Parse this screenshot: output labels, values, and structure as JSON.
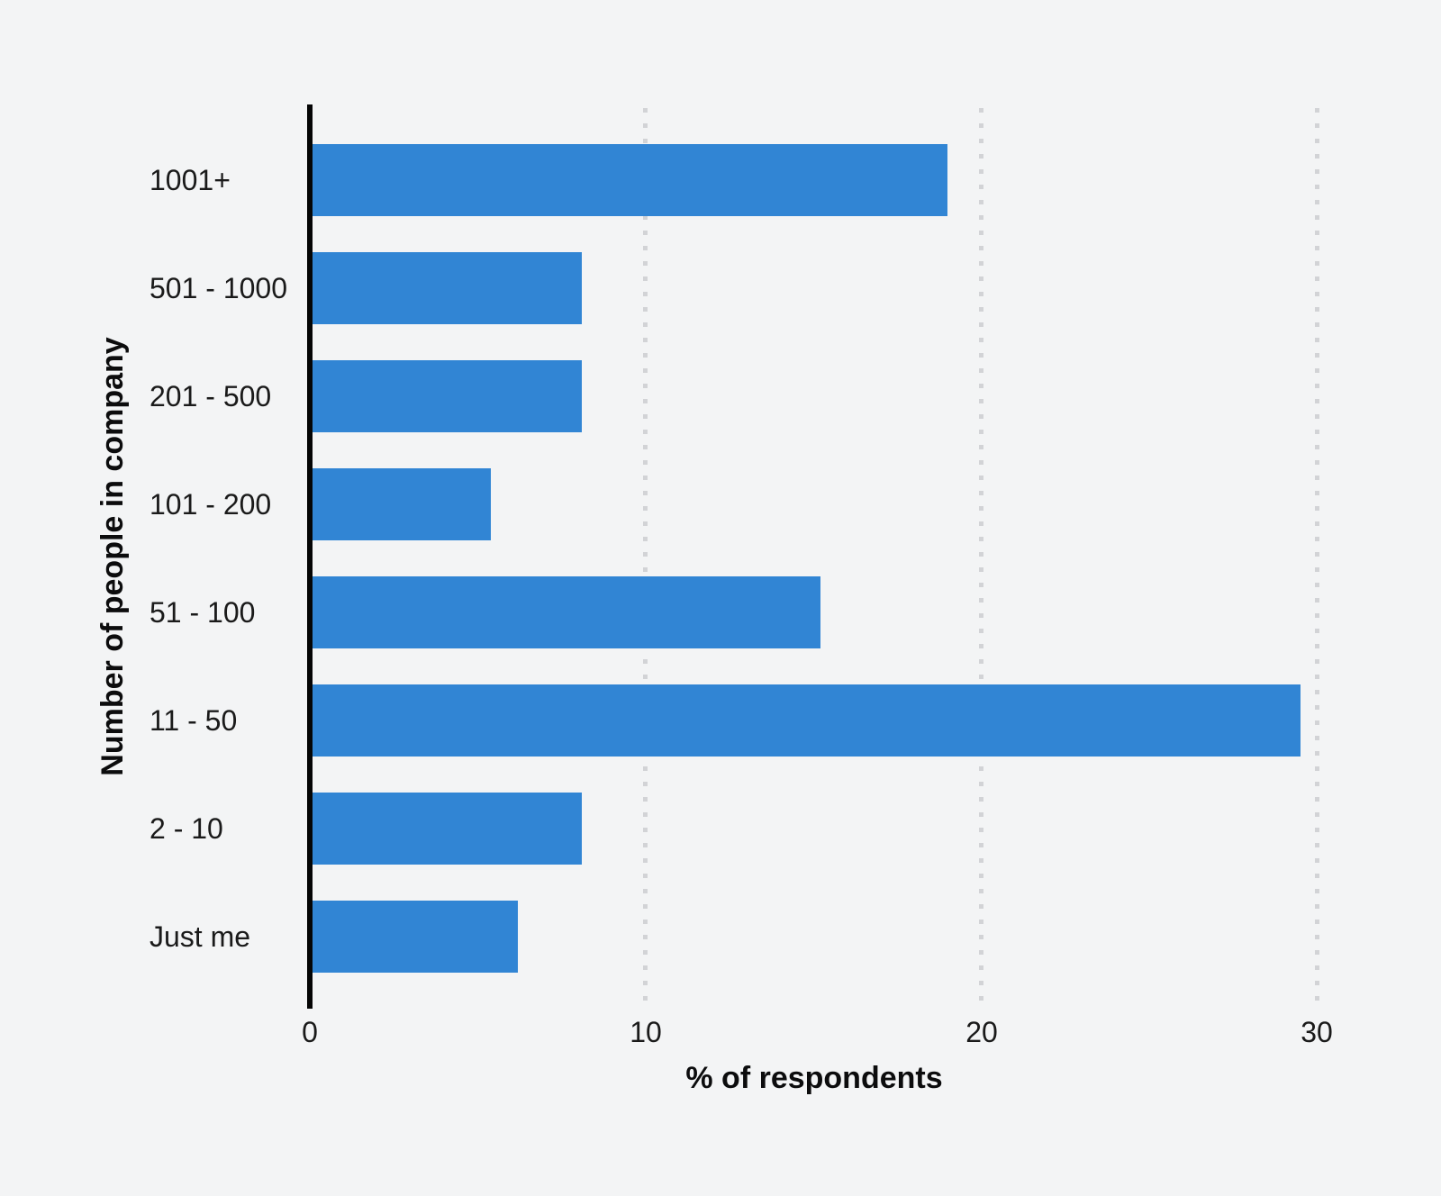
{
  "chart_data": {
    "type": "bar",
    "orientation": "horizontal",
    "xlabel": "% of respondents",
    "ylabel": "Number of people in company",
    "categories": [
      "1001+",
      "501 - 1000",
      "201 - 500",
      "101 - 200",
      "51 - 100",
      "11 - 50",
      "2 - 10",
      "Just me"
    ],
    "values": [
      19.0,
      8.1,
      8.1,
      5.4,
      15.2,
      29.5,
      8.1,
      6.2
    ],
    "xlim": [
      0,
      30.8
    ],
    "xticks": [
      0,
      10,
      20,
      30
    ],
    "grid": "vertical-dotted",
    "legend": "none",
    "colors": {
      "bar": "#3185d4",
      "background": "#f3f4f5",
      "gridline": "#d2d3d6",
      "axis": "#050505",
      "label_text": "#1a1a1a",
      "title_text": "#0c0c0d"
    }
  }
}
